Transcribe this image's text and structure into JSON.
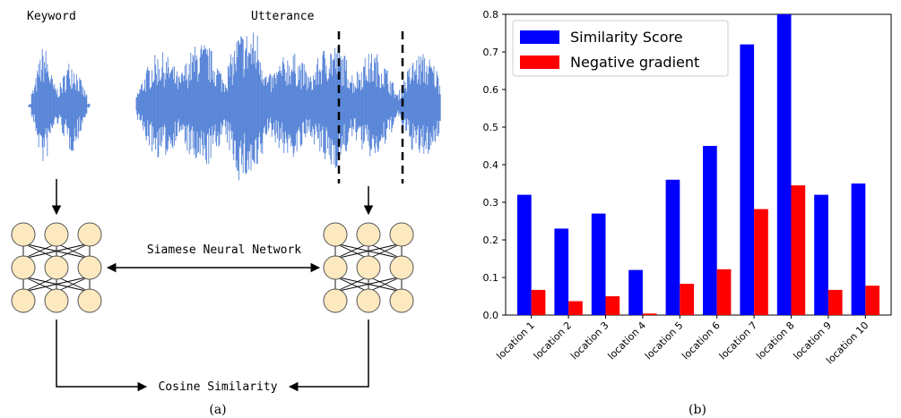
{
  "panel_a": {
    "keyword_label": "Keyword",
    "utterance_label": "Utterance",
    "network_label": "Siamese Neural Network",
    "cosine_label": "Cosine Similarity",
    "caption": "(a)",
    "waveform_color": "#3a6fd1"
  },
  "panel_b": {
    "caption": "(b)"
  },
  "chart_data": {
    "type": "bar",
    "categories": [
      "location 1",
      "location 2",
      "location 3",
      "location 4",
      "location 5",
      "location 6",
      "location 7",
      "location 8",
      "location 9",
      "location 10"
    ],
    "series": [
      {
        "name": "Similarity Score",
        "color": "#0000ff",
        "values": [
          0.32,
          0.23,
          0.27,
          0.12,
          0.36,
          0.45,
          0.72,
          0.8,
          0.32,
          0.35
        ]
      },
      {
        "name": "Negative gradient",
        "color": "#ff0000",
        "values": [
          0.067,
          0.037,
          0.05,
          0.004,
          0.083,
          0.122,
          0.282,
          0.345,
          0.067,
          0.078
        ]
      }
    ],
    "title": "",
    "xlabel": "",
    "ylabel": "",
    "ylim": [
      0,
      0.8
    ],
    "yticks": [
      "0.0",
      "0.1",
      "0.2",
      "0.3",
      "0.4",
      "0.5",
      "0.6",
      "0.7",
      "0.8"
    ],
    "legend_position": "top-left",
    "grid": false
  }
}
